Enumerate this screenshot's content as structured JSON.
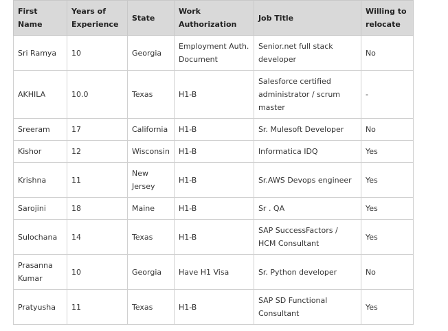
{
  "table": {
    "headers": [
      "First Name",
      "Years of Experience",
      "State",
      "Work Authorization",
      "Job Title",
      "Willing to relocate"
    ],
    "rows": [
      [
        "Sri Ramya",
        "10",
        "Georgia",
        "Employment Auth. Document",
        "Senior.net full stack developer",
        "No"
      ],
      [
        "AKHILA",
        "10.0",
        "Texas",
        "H1-B",
        "Salesforce certified administrator / scrum master",
        "-"
      ],
      [
        "Sreeram",
        "17",
        "California",
        "H1-B",
        "Sr. Mulesoft Developer",
        "No"
      ],
      [
        "Kishor",
        "12",
        "Wisconsin",
        "H1-B",
        "Informatica IDQ",
        "Yes"
      ],
      [
        "Krishna",
        "11",
        "New Jersey",
        "H1-B",
        "Sr.AWS Devops engineer",
        "Yes"
      ],
      [
        "Sarojini",
        "18",
        "Maine",
        "H1-B",
        "Sr . QA",
        "Yes"
      ],
      [
        "Sulochana",
        "14",
        "Texas",
        "H1-B",
        "SAP SuccessFactors / HCM Consultant",
        "Yes"
      ],
      [
        "Prasanna Kumar",
        "10",
        "Georgia",
        "Have H1 Visa",
        "Sr. Python developer",
        "No"
      ],
      [
        "Pratyusha",
        "11",
        "Texas",
        "H1-B",
        "SAP SD Functional Consultant",
        "Yes"
      ]
    ]
  }
}
